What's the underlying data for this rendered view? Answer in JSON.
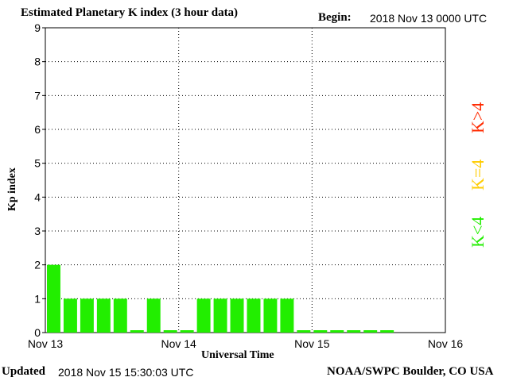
{
  "header": {
    "title": "Estimated Planetary K index (3 hour data)",
    "begin_label": "Begin:",
    "begin_value": "2018 Nov 13 0000 UTC"
  },
  "footer": {
    "updated_label": "Updated",
    "updated_value": "2018 Nov 15 15:30:03 UTC",
    "credit": "NOAA/SWPC Boulder, CO USA"
  },
  "legend": {
    "k_gt_4": "K>4",
    "k_eq_4": "K=4",
    "k_lt_4": "K<4"
  },
  "colors": {
    "k_lt_4": "#22ee00",
    "k_eq_4": "#ffcc00",
    "k_gt_4": "#ff2a00"
  },
  "chart_data": {
    "type": "bar",
    "xlabel": "Universal Time",
    "ylabel": "Kp index",
    "ylim": [
      0,
      9
    ],
    "y_ticks": [
      "0",
      "1",
      "2",
      "3",
      "4",
      "5",
      "6",
      "7",
      "8",
      "9"
    ],
    "x_ticks": [
      "Nov 13",
      "Nov 14",
      "Nov 15",
      "Nov 16"
    ],
    "grid": true,
    "values": [
      2,
      1,
      1,
      1,
      1,
      0,
      1,
      0,
      0,
      1,
      1,
      1,
      1,
      1,
      1,
      0,
      0,
      0,
      0,
      0,
      0
    ]
  }
}
